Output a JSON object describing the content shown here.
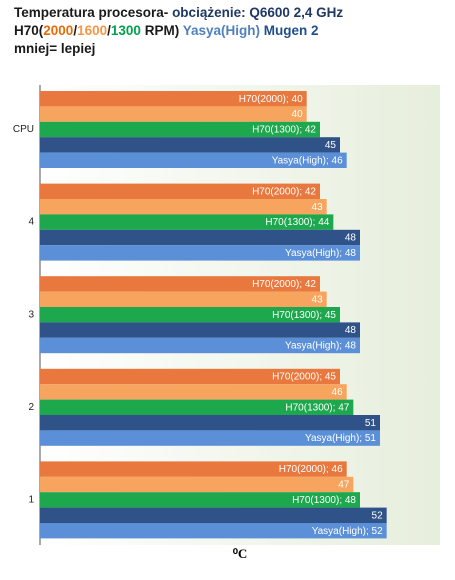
{
  "chart_data": {
    "type": "bar",
    "orientation": "horizontal",
    "title": [
      [
        {
          "text": "Temperatura procesora- ",
          "color": "#1a1a1a"
        },
        {
          "text": "obciążenie: Q6600 2,4 GHz",
          "color": "#1f3864"
        }
      ],
      [
        {
          "text": "H70(",
          "color": "#1a1a1a"
        },
        {
          "text": "2000",
          "color": "#e46c0a"
        },
        {
          "text": "/",
          "color": "#1a1a1a"
        },
        {
          "text": "1600",
          "color": "#f79646"
        },
        {
          "text": "/",
          "color": "#1a1a1a"
        },
        {
          "text": "1300",
          "color": "#00a050"
        },
        {
          "text": " RPM) ",
          "color": "#1a1a1a"
        },
        {
          "text": "Yasya(High) ",
          "color": "#4f81bd"
        },
        {
          "text": "Mugen 2",
          "color": "#1f4e8c"
        }
      ],
      [
        {
          "text": "mniej= lepiej",
          "color": "#1a1a1a"
        }
      ]
    ],
    "x_label": "⁰C",
    "categories": [
      "CPU",
      "4",
      "3",
      "2",
      "1"
    ],
    "xlim": [
      0,
      60
    ],
    "series": [
      {
        "color": "#e8783e",
        "values": [
          40,
          42,
          42,
          45,
          46
        ],
        "value_labels": [
          "H70(2000); 40",
          "H70(2000); 42",
          "H70(2000); 42",
          "H70(2000); 45",
          "H70(2000); 46"
        ]
      },
      {
        "color": "#f7a45e",
        "values": [
          40,
          43,
          43,
          46,
          47
        ]
      },
      {
        "color": "#1ea84e",
        "values": [
          42,
          44,
          45,
          47,
          48
        ],
        "value_labels": [
          "H70(1300); 42",
          "H70(1300); 44",
          "H70(1300); 45",
          "H70(1300); 47",
          "H70(1300); 48"
        ]
      },
      {
        "color": "#2f5288",
        "values": [
          45,
          48,
          48,
          51,
          52
        ]
      },
      {
        "color": "#5b8fd8",
        "values": [
          46,
          48,
          48,
          51,
          52
        ],
        "value_labels": [
          "Yasya(High); 46",
          "Yasya(High); 48",
          "Yasya(High); 48",
          "Yasya(High); 51",
          "Yasya(High); 52"
        ]
      }
    ]
  }
}
